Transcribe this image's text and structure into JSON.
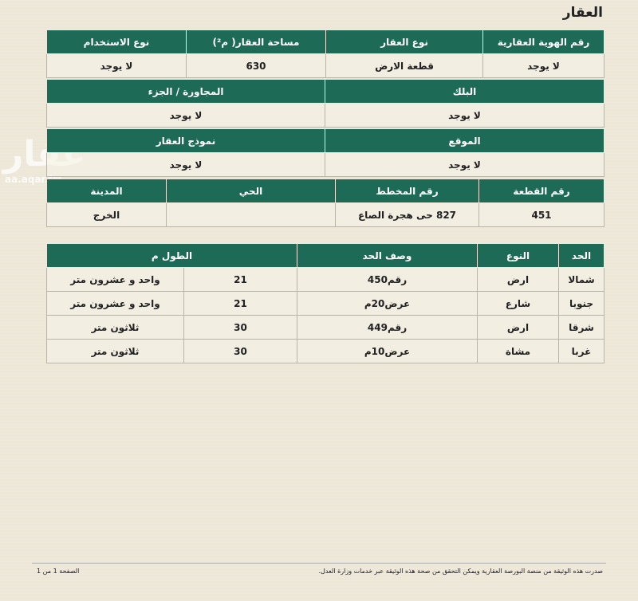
{
  "title": "العقار",
  "watermark": {
    "brand": "عقار",
    "url": "aa.aqar.fm"
  },
  "property_table": {
    "headers": [
      "رقم الهوية العقارية",
      "نوع العقار",
      "مساحة العقار( م²)",
      "نوع الاستخدام"
    ],
    "values": [
      "لا يوجد",
      "قطعة الارض",
      "630",
      "لا يوجد"
    ]
  },
  "block_table": {
    "headers": [
      "البلك",
      "المجاورة / الجزء"
    ],
    "values": [
      "لا يوجد",
      "لا يوجد"
    ]
  },
  "location_table": {
    "headers": [
      "الموقع",
      "نموذج العقار"
    ],
    "values": [
      "لا يوجد",
      "لا يوجد"
    ]
  },
  "plot_table": {
    "headers": [
      "رقم القطعة",
      "رقم المخطط",
      "الحي",
      "المدينة"
    ],
    "values": [
      "451",
      "827 حى هجرة الصاع",
      null,
      "الخرج"
    ]
  },
  "boundaries_table": {
    "headers": [
      "الحد",
      "النوع",
      "وصف الحد",
      "الطول م"
    ],
    "rows": [
      [
        "شمالا",
        "ارض",
        "رقم450",
        "21",
        "واحد و عشرون متر"
      ],
      [
        "جنوبا",
        "شارع",
        "عرض20م",
        "21",
        "واحد و عشرون متر"
      ],
      [
        "شرقا",
        "ارض",
        "رقم449",
        "30",
        "ثلاثون متر"
      ],
      [
        "غربا",
        "مشاة",
        "عرض10م",
        "30",
        "ثلاثون متر"
      ]
    ]
  },
  "footer": {
    "note": "صدرت هذه الوثيقة من منصة البورصة العقارية ويمكن التحقق من صحة هذه الوثيقة عبر خدمات وزارة العدل.",
    "page": "الصفحة 1 من 1"
  }
}
